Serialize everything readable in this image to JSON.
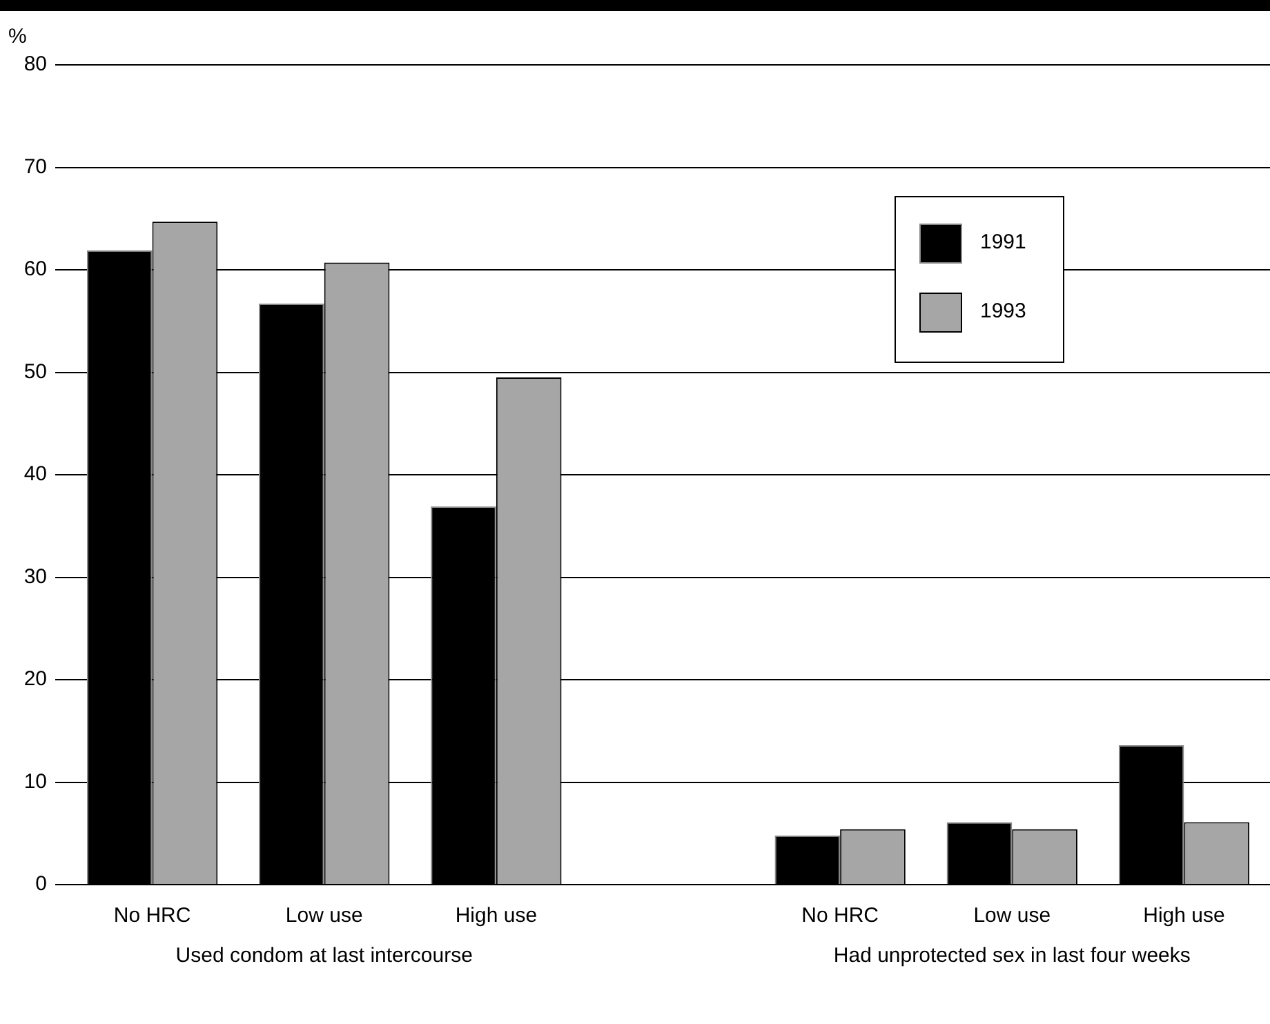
{
  "chart_data": {
    "type": "bar",
    "ylabel": "%",
    "categories": [
      "No HRC",
      "Low use",
      "High use",
      null,
      "No HRC",
      "Low use",
      "High use"
    ],
    "series": [
      {
        "name": "1991",
        "color": "#000000",
        "values": [
          61.9,
          56.7,
          36.9,
          null,
          4.8,
          6.1,
          13.6
        ]
      },
      {
        "name": "1993",
        "color": "#a6a6a6",
        "values": [
          64.7,
          60.7,
          49.5,
          null,
          5.4,
          5.4,
          6.1
        ]
      }
    ],
    "ylim": [
      0,
      80
    ],
    "yticks": [
      0,
      10,
      20,
      30,
      40,
      50,
      60,
      70,
      80
    ],
    "grid": "y",
    "legend": "top right",
    "annotations": [
      "Used condom at last intercourse",
      "Had unprotected sex in last four weeks"
    ]
  }
}
